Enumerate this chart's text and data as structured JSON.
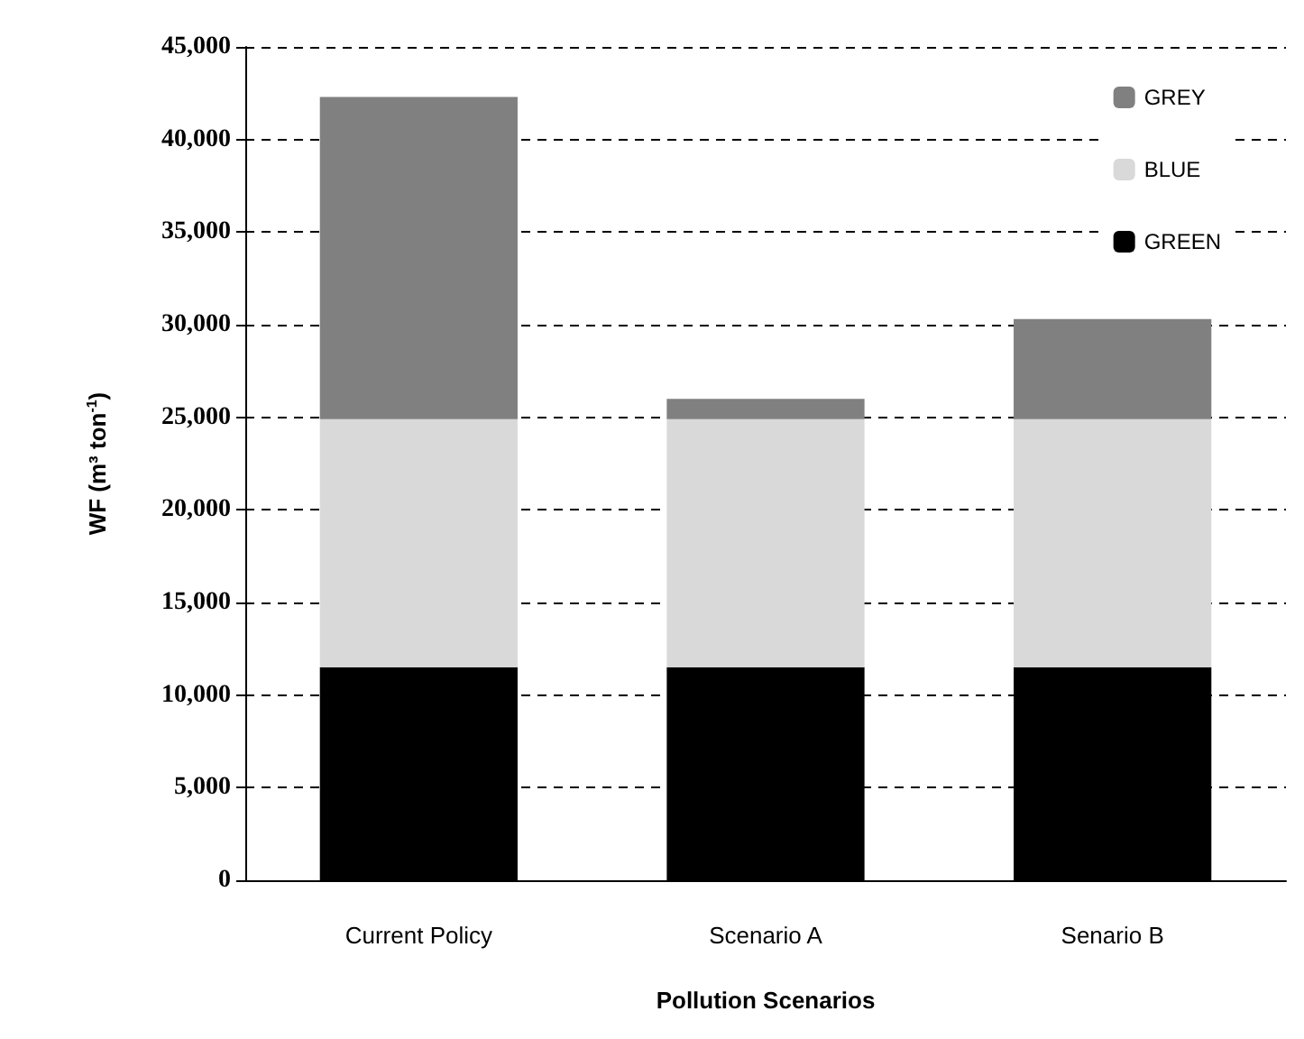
{
  "chart_data": {
    "type": "bar",
    "stacked": true,
    "categories": [
      "Current Policy",
      "Scenario A",
      "Senario B"
    ],
    "series": [
      {
        "name": "GREEN",
        "color": "#000000",
        "values": [
          11500,
          11500,
          11500
        ]
      },
      {
        "name": "BLUE",
        "color": "#d9d9d9",
        "values": [
          13400,
          13400,
          13400
        ]
      },
      {
        "name": "GREY",
        "color": "#808080",
        "values": [
          17400,
          1100,
          5400
        ]
      }
    ],
    "xlabel": "Pollution Scenarios",
    "ylabel": "WF (m³ ton$^{-1}$)",
    "ylim": [
      0,
      45000
    ],
    "yticks": [
      0,
      {
        "value": 5000,
        "label": "5,000"
      },
      {
        "value": 10000,
        "label": "10,000"
      },
      {
        "value": 15000,
        "label": "15,000"
      },
      {
        "value": 20000,
        "label": "20,000"
      },
      {
        "value": 25000,
        "label": "25,000"
      },
      {
        "value": 30000,
        "label": "30,000"
      },
      {
        "value": 35000,
        "label": "35,000"
      },
      {
        "value": 40000,
        "label": "40,000"
      },
      {
        "value": 45000,
        "label": "45,000"
      }
    ],
    "grid": "y",
    "legend": "top right"
  }
}
